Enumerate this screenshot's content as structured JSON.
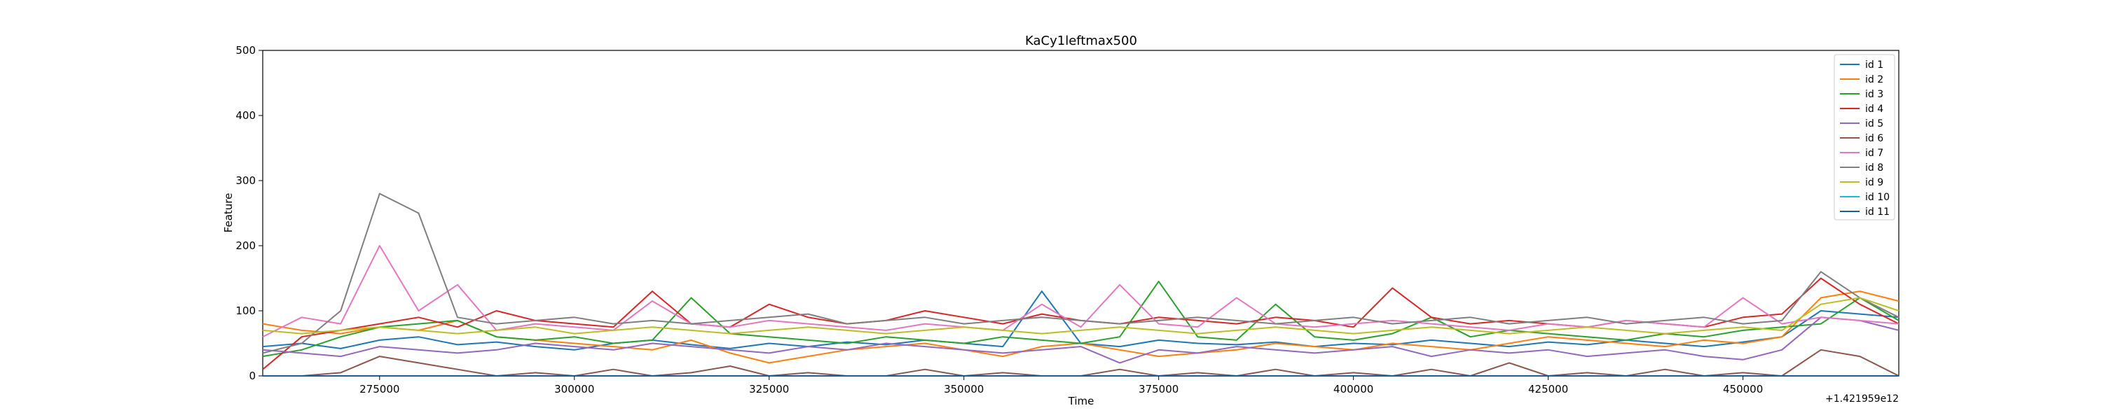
{
  "chart_data": {
    "type": "line",
    "title": "KaCy1leftmax500",
    "xlabel": "Time",
    "ylabel": "Feature",
    "x_offset_label": "+1.421959e12",
    "xlim": [
      260000,
      470000
    ],
    "ylim": [
      0,
      500
    ],
    "xticks": [
      275000,
      300000,
      325000,
      350000,
      375000,
      400000,
      425000,
      450000
    ],
    "xtick_labels": [
      "275000",
      "300000",
      "325000",
      "350000",
      "375000",
      "400000",
      "425000",
      "450000"
    ],
    "yticks": [
      0,
      100,
      200,
      300,
      400,
      500
    ],
    "ytick_labels": [
      "0",
      "100",
      "200",
      "300",
      "400",
      "500"
    ],
    "grid": false,
    "legend_position": "top-right",
    "x": [
      260000,
      265000,
      270000,
      275000,
      280000,
      285000,
      290000,
      295000,
      300000,
      305000,
      310000,
      315000,
      320000,
      325000,
      330000,
      335000,
      340000,
      345000,
      350000,
      355000,
      360000,
      365000,
      370000,
      375000,
      380000,
      385000,
      390000,
      395000,
      400000,
      405000,
      410000,
      415000,
      420000,
      425000,
      430000,
      435000,
      440000,
      445000,
      450000,
      455000,
      460000,
      465000,
      470000
    ],
    "series": [
      {
        "name": "id 1",
        "color": "#1f77b4",
        "values": [
          45,
          50,
          42,
          55,
          60,
          48,
          52,
          45,
          40,
          50,
          55,
          48,
          42,
          50,
          45,
          52,
          48,
          55,
          50,
          45,
          130,
          50,
          45,
          55,
          50,
          48,
          52,
          45,
          50,
          48,
          55,
          50,
          45,
          52,
          48,
          55,
          50,
          45,
          52,
          60,
          100,
          95,
          90
        ]
      },
      {
        "name": "id 2",
        "color": "#ff7f0e",
        "values": [
          80,
          70,
          65,
          75,
          70,
          85,
          60,
          55,
          50,
          45,
          40,
          55,
          35,
          20,
          30,
          40,
          45,
          50,
          40,
          30,
          45,
          50,
          40,
          30,
          35,
          40,
          50,
          45,
          40,
          50,
          45,
          40,
          50,
          60,
          55,
          50,
          45,
          55,
          50,
          60,
          120,
          130,
          115
        ]
      },
      {
        "name": "id 3",
        "color": "#2ca02c",
        "values": [
          30,
          40,
          60,
          75,
          80,
          85,
          60,
          55,
          60,
          50,
          55,
          120,
          65,
          60,
          55,
          50,
          60,
          55,
          50,
          60,
          55,
          50,
          60,
          145,
          60,
          55,
          110,
          60,
          55,
          65,
          90,
          60,
          70,
          65,
          60,
          55,
          65,
          60,
          70,
          75,
          80,
          120,
          85
        ]
      },
      {
        "name": "id 4",
        "color": "#d62728",
        "values": [
          10,
          60,
          70,
          80,
          90,
          75,
          100,
          85,
          80,
          75,
          130,
          80,
          75,
          110,
          90,
          80,
          85,
          100,
          90,
          80,
          95,
          85,
          80,
          90,
          85,
          80,
          90,
          85,
          75,
          135,
          90,
          80,
          85,
          80,
          75,
          85,
          80,
          75,
          90,
          95,
          150,
          110,
          80
        ]
      },
      {
        "name": "id 5",
        "color": "#9467bd",
        "values": [
          40,
          35,
          30,
          45,
          40,
          35,
          40,
          50,
          45,
          40,
          50,
          45,
          40,
          35,
          45,
          40,
          50,
          45,
          40,
          35,
          40,
          45,
          20,
          40,
          35,
          45,
          40,
          35,
          40,
          45,
          30,
          40,
          35,
          40,
          30,
          35,
          40,
          30,
          25,
          40,
          90,
          85,
          70
        ]
      },
      {
        "name": "id 6",
        "color": "#8c564b",
        "values": [
          0,
          0,
          5,
          30,
          20,
          10,
          0,
          5,
          0,
          10,
          0,
          5,
          15,
          0,
          5,
          0,
          0,
          10,
          0,
          5,
          0,
          0,
          10,
          0,
          5,
          0,
          10,
          0,
          5,
          0,
          10,
          0,
          20,
          0,
          5,
          0,
          10,
          0,
          5,
          0,
          40,
          30,
          0
        ]
      },
      {
        "name": "id 7",
        "color": "#e377c2",
        "values": [
          60,
          90,
          80,
          200,
          100,
          140,
          70,
          80,
          75,
          70,
          115,
          80,
          75,
          85,
          80,
          75,
          70,
          80,
          75,
          70,
          110,
          75,
          140,
          80,
          75,
          120,
          80,
          75,
          80,
          85,
          80,
          75,
          70,
          80,
          75,
          85,
          80,
          75,
          120,
          80,
          90,
          85,
          80
        ]
      },
      {
        "name": "id 8",
        "color": "#7f7f7f",
        "values": [
          35,
          50,
          100,
          280,
          250,
          90,
          80,
          85,
          90,
          80,
          85,
          80,
          85,
          90,
          95,
          80,
          85,
          90,
          80,
          85,
          90,
          85,
          80,
          85,
          90,
          85,
          80,
          85,
          90,
          80,
          85,
          90,
          80,
          85,
          90,
          80,
          85,
          90,
          80,
          85,
          160,
          120,
          90
        ]
      },
      {
        "name": "id 9",
        "color": "#bcbd22",
        "values": [
          70,
          65,
          70,
          75,
          70,
          65,
          70,
          75,
          65,
          70,
          75,
          70,
          65,
          70,
          75,
          70,
          65,
          70,
          75,
          70,
          65,
          70,
          75,
          70,
          65,
          70,
          75,
          70,
          65,
          70,
          75,
          70,
          65,
          70,
          75,
          70,
          65,
          70,
          75,
          70,
          110,
          120,
          100
        ]
      },
      {
        "name": "id 10",
        "color": "#17becf",
        "values": [
          0,
          0,
          0,
          0,
          0,
          0,
          0,
          0,
          0,
          0,
          0,
          0,
          0,
          0,
          0,
          0,
          0,
          0,
          0,
          0,
          0,
          0,
          0,
          0,
          0,
          0,
          0,
          0,
          0,
          0,
          0,
          0,
          0,
          0,
          0,
          0,
          0,
          0,
          0,
          0,
          0,
          0,
          0
        ]
      },
      {
        "name": "id 11",
        "color": "#1f5c99",
        "values": [
          0,
          0,
          0,
          0,
          0,
          0,
          0,
          0,
          0,
          0,
          0,
          0,
          0,
          0,
          0,
          0,
          0,
          0,
          0,
          0,
          0,
          0,
          0,
          0,
          0,
          0,
          0,
          0,
          0,
          0,
          0,
          0,
          0,
          0,
          0,
          0,
          0,
          0,
          0,
          0,
          0,
          0,
          0
        ]
      }
    ]
  }
}
